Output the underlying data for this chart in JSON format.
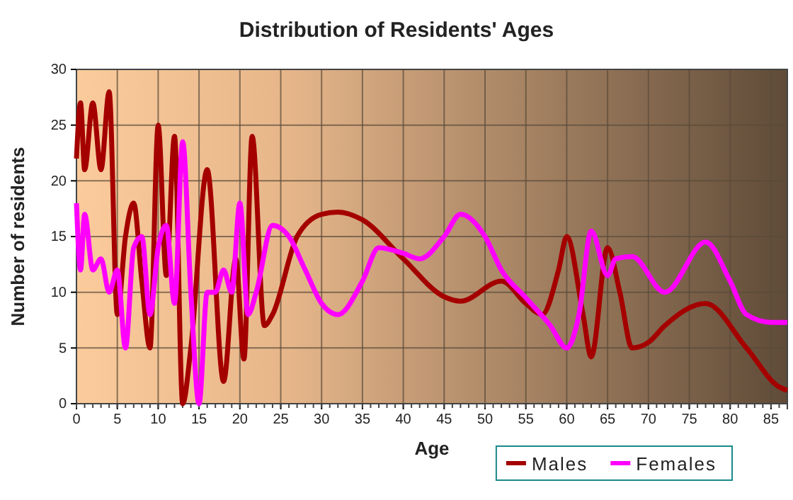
{
  "chart_data": {
    "type": "line",
    "title": "Distribution of Residents' Ages",
    "xlabel": "Age",
    "ylabel": "Number of residents",
    "xlim": [
      0,
      87
    ],
    "xticks": [
      0,
      5,
      10,
      15,
      20,
      25,
      30,
      35,
      40,
      45,
      50,
      55,
      60,
      65,
      70,
      75,
      80,
      85
    ],
    "ylim": [
      0,
      30
    ],
    "yticks": [
      0,
      5,
      10,
      15,
      20,
      25,
      30
    ],
    "grid": true,
    "legend": "bottom",
    "line_style": "solid",
    "marker": "none",
    "series": [
      {
        "name": "Males",
        "color": "#a50000",
        "x": [
          0,
          0.5,
          1,
          2,
          3,
          4,
          5,
          6,
          7,
          8,
          9,
          10,
          11,
          12,
          13,
          14,
          16,
          18,
          19.5,
          20.5,
          21.5,
          23,
          24,
          27,
          30,
          32,
          35,
          40,
          45,
          47,
          52,
          55,
          57,
          59,
          60,
          62,
          63,
          65,
          66.5,
          68,
          70,
          72,
          77,
          82,
          86,
          87
        ],
        "values": [
          22,
          27,
          21,
          27,
          21,
          28,
          8,
          15,
          18,
          11,
          5,
          25,
          11.5,
          24,
          0,
          5,
          21,
          2,
          13,
          4,
          24,
          7,
          8,
          15,
          17,
          17.2,
          16.5,
          13,
          9.6,
          9.2,
          11,
          9,
          8,
          12,
          15,
          8,
          4.2,
          14,
          10,
          5,
          5.5,
          7,
          9,
          5,
          1.5,
          1.2
        ]
      },
      {
        "name": "Females",
        "color": "#ff00ff",
        "x": [
          0,
          0.5,
          1,
          2,
          3,
          4,
          5,
          6,
          7,
          8,
          9,
          10,
          11,
          12,
          13,
          14,
          15,
          16,
          17,
          18,
          19,
          20,
          21,
          22,
          24,
          26,
          28,
          30,
          32,
          35,
          37,
          40,
          42,
          45,
          47,
          50,
          52,
          55,
          58,
          60,
          61.5,
          63,
          65,
          66,
          68,
          72,
          77,
          80,
          82,
          85,
          87
        ],
        "values": [
          18,
          12,
          17,
          12,
          13,
          10,
          12,
          5,
          14,
          15,
          8,
          14,
          16,
          9,
          23.5,
          10,
          0,
          10,
          10,
          12,
          10,
          18,
          8,
          10,
          16,
          15,
          12,
          9,
          8,
          11,
          14,
          13.5,
          13,
          15,
          17,
          15,
          12,
          9.5,
          7,
          5,
          8,
          15.5,
          11.5,
          13,
          13.2,
          10,
          14.5,
          11,
          8,
          7.3,
          7.3
        ]
      }
    ]
  }
}
